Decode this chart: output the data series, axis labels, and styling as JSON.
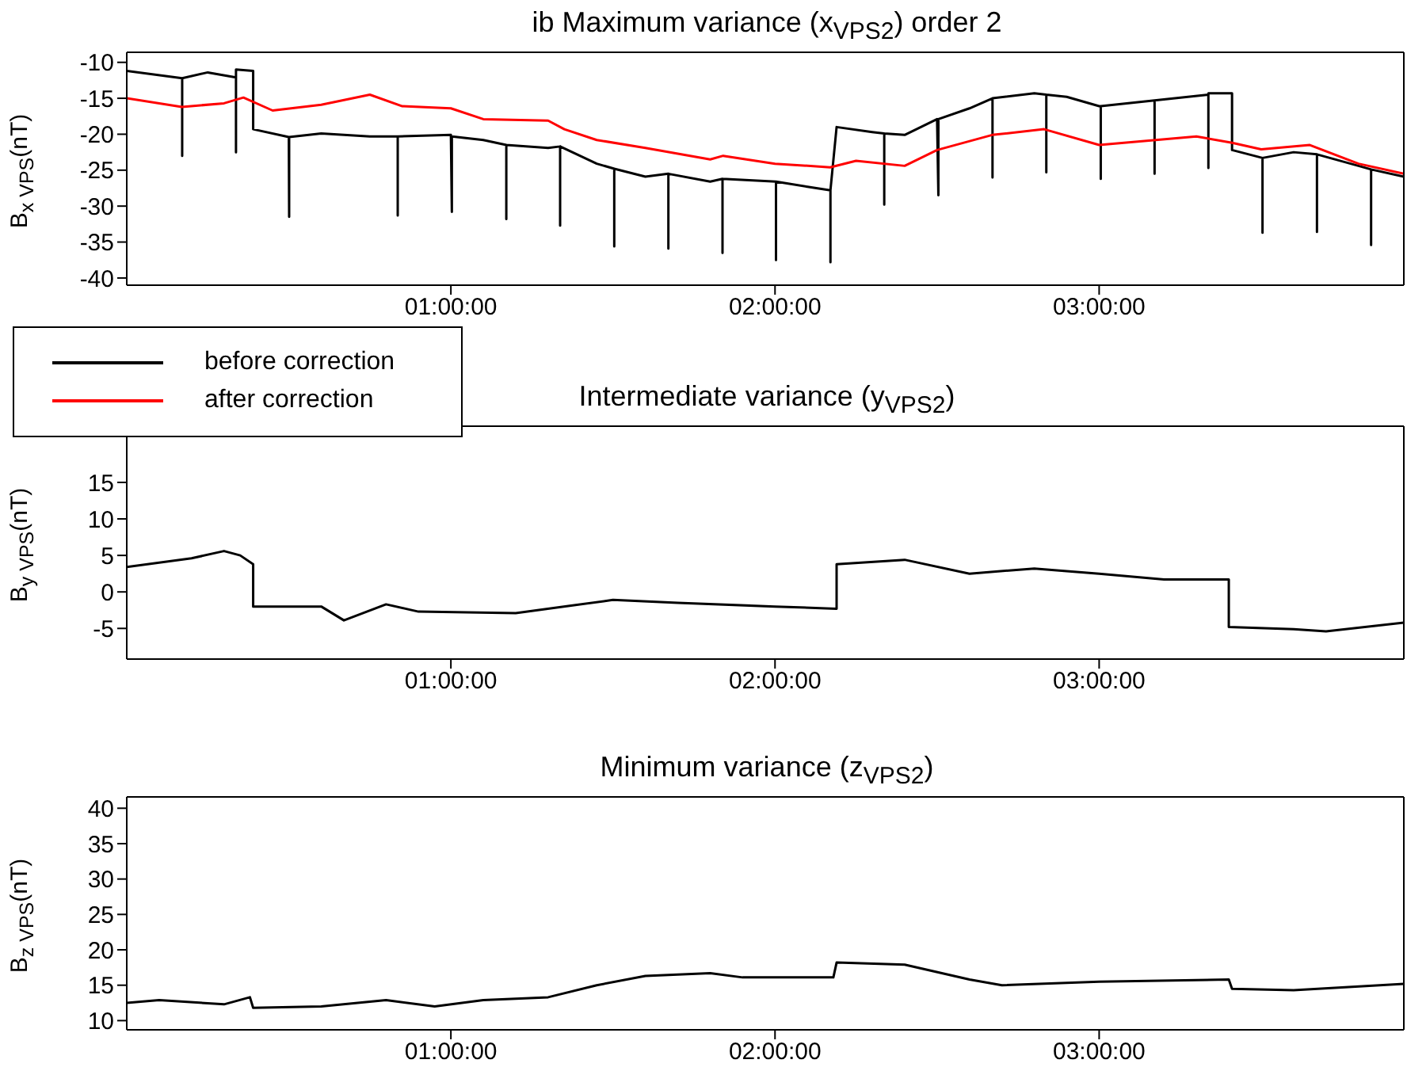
{
  "chart_data": [
    {
      "type": "line",
      "title": "ib Maximum variance (x$_{VPS2}$) order 2",
      "ylabel": "B$_{x VPS}$(nT)",
      "xlim": [
        0,
        3.94
      ],
      "xticks": [
        {
          "value": 1,
          "label": "01:00:00"
        },
        {
          "value": 2,
          "label": "02:00:00"
        },
        {
          "value": 3,
          "label": "03:00:00"
        }
      ],
      "ylim": [
        -41,
        -8.6
      ],
      "yticks": [
        -10,
        -15,
        -20,
        -25,
        -30,
        -35,
        -40
      ],
      "legend": "bottom left",
      "series": [
        {
          "name": "before correction",
          "color": "#000000",
          "x": [
            0,
            0.171,
            0.171,
            0.171,
            0.25,
            0.337,
            0.337,
            0.337,
            0.39,
            0.39,
            0.5,
            0.501,
            0.501,
            0.6,
            0.75,
            0.836,
            0.836,
            0.836,
            1.0,
            1.003,
            1.003,
            1.1,
            1.171,
            1.171,
            1.171,
            1.3,
            1.337,
            1.337,
            1.337,
            1.45,
            1.504,
            1.504,
            1.504,
            1.6,
            1.671,
            1.671,
            1.671,
            1.8,
            1.838,
            1.838,
            1.838,
            2.003,
            2.003,
            2.003,
            2.1,
            2.171,
            2.171,
            2.171,
            2.19,
            2.3,
            2.337,
            2.337,
            2.337,
            2.4,
            2.5,
            2.504,
            2.504,
            2.6,
            2.671,
            2.671,
            2.671,
            2.8,
            2.837,
            2.837,
            2.837,
            2.9,
            3.0,
            3.005,
            3.005,
            3.005,
            3.171,
            3.171,
            3.171,
            3.337,
            3.337,
            3.337,
            3.41,
            3.41,
            3.504,
            3.504,
            3.504,
            3.6,
            3.672,
            3.672,
            3.672,
            3.8,
            3.839,
            3.839,
            3.839,
            3.94
          ],
          "values": [
            -11.2,
            -12.2,
            -23,
            -12.2,
            -11.4,
            -12.1,
            -22.5,
            -11,
            -11.2,
            -19.3,
            -20.4,
            -31.5,
            -20.4,
            -19.9,
            -20.3,
            -20.3,
            -31.3,
            -20.3,
            -20.1,
            -30.8,
            -20.3,
            -20.8,
            -21.5,
            -31.8,
            -21.5,
            -21.9,
            -21.7,
            -32.7,
            -21.7,
            -24.1,
            -24.8,
            -35.6,
            -24.8,
            -25.9,
            -25.5,
            -35.9,
            -25.5,
            -26.6,
            -26.2,
            -36.5,
            -26.2,
            -26.6,
            -37.5,
            -26.6,
            -27.3,
            -27.8,
            -37.8,
            -27.8,
            -19,
            -19.7,
            -19.9,
            -29.8,
            -19.9,
            -20.1,
            -17.9,
            -28.5,
            -17.9,
            -16.4,
            -15,
            -26,
            -15,
            -14.3,
            -14.5,
            -25.3,
            -14.5,
            -14.8,
            -16.1,
            -16.1,
            -26.2,
            -16.1,
            -15.3,
            -25.5,
            -15.3,
            -14.5,
            -24.7,
            -14.3,
            -14.3,
            -22.2,
            -23.3,
            -33.7,
            -23.3,
            -22.5,
            -22.8,
            -33.6,
            -22.8,
            -24.4,
            -24.9,
            -35.4,
            -24.9,
            -25.9
          ]
        },
        {
          "name": "after correction",
          "color": "#ff0000",
          "x": [
            0,
            0.17,
            0.3,
            0.36,
            0.45,
            0.6,
            0.75,
            0.85,
            1.0,
            1.1,
            1.3,
            1.35,
            1.45,
            1.6,
            1.8,
            1.84,
            2.0,
            2.17,
            2.25,
            2.4,
            2.5,
            2.67,
            2.83,
            3.0,
            3.3,
            3.41,
            3.5,
            3.65,
            3.8,
            3.94
          ],
          "values": [
            -15,
            -16.2,
            -15.7,
            -14.9,
            -16.7,
            -15.9,
            -14.5,
            -16.1,
            -16.4,
            -17.9,
            -18.1,
            -19.3,
            -20.8,
            -21.9,
            -23.5,
            -23,
            -24.1,
            -24.6,
            -23.7,
            -24.4,
            -22.2,
            -20.1,
            -19.3,
            -21.5,
            -20.3,
            -21.2,
            -22.1,
            -21.5,
            -24.1,
            -25.5
          ]
        }
      ]
    },
    {
      "type": "line",
      "title": "Intermediate variance (y$_{VPS2}$)",
      "ylabel": "B$_{y VPS}$(nT)",
      "xlim": [
        0,
        3.94
      ],
      "xticks": [
        {
          "value": 1,
          "label": "01:00:00"
        },
        {
          "value": 2,
          "label": "02:00:00"
        },
        {
          "value": 3,
          "label": "03:00:00"
        }
      ],
      "ylim": [
        -9.2,
        22.7
      ],
      "yticks": [
        -5,
        0,
        5,
        10,
        15
      ],
      "series": [
        {
          "color": "#000000",
          "x": [
            0,
            0.2,
            0.3,
            0.35,
            0.39,
            0.39,
            0.6,
            0.67,
            0.8,
            0.9,
            1.2,
            1.5,
            1.7,
            2.0,
            2.19,
            2.19,
            2.4,
            2.6,
            2.8,
            3.0,
            3.2,
            3.4,
            3.4,
            3.6,
            3.7,
            3.94
          ],
          "values": [
            3.4,
            4.6,
            5.6,
            5,
            3.8,
            -2,
            -2,
            -3.9,
            -1.7,
            -2.7,
            -2.9,
            -1.1,
            -1.5,
            -2,
            -2.3,
            3.8,
            4.4,
            2.5,
            3.2,
            2.5,
            1.7,
            1.7,
            -4.8,
            -5.1,
            -5.4,
            -4.2
          ]
        }
      ]
    },
    {
      "type": "line",
      "title": "Minimum variance (z$_{VPS2}$)",
      "ylabel": "B$_{z VPS}$(nT)",
      "xlim": [
        0,
        3.94
      ],
      "xticks": [
        {
          "value": 1,
          "label": "01:00:00"
        },
        {
          "value": 2,
          "label": "02:00:00"
        },
        {
          "value": 3,
          "label": "03:00:00"
        }
      ],
      "ylim": [
        8.7,
        41.6
      ],
      "yticks": [
        10,
        15,
        20,
        25,
        30,
        35,
        40
      ],
      "series": [
        {
          "color": "#000000",
          "x": [
            0,
            0.1,
            0.3,
            0.38,
            0.39,
            0.6,
            0.8,
            0.95,
            1.1,
            1.3,
            1.45,
            1.6,
            1.8,
            1.9,
            2.18,
            2.19,
            2.4,
            2.6,
            2.7,
            3.0,
            3.4,
            3.41,
            3.6,
            3.94
          ],
          "values": [
            12.5,
            12.9,
            12.3,
            13.3,
            11.8,
            12,
            12.9,
            12,
            12.9,
            13.3,
            15,
            16.3,
            16.7,
            16.1,
            16.1,
            18.2,
            17.9,
            15.8,
            15,
            15.5,
            15.8,
            14.5,
            14.3,
            15.2
          ]
        }
      ]
    }
  ]
}
